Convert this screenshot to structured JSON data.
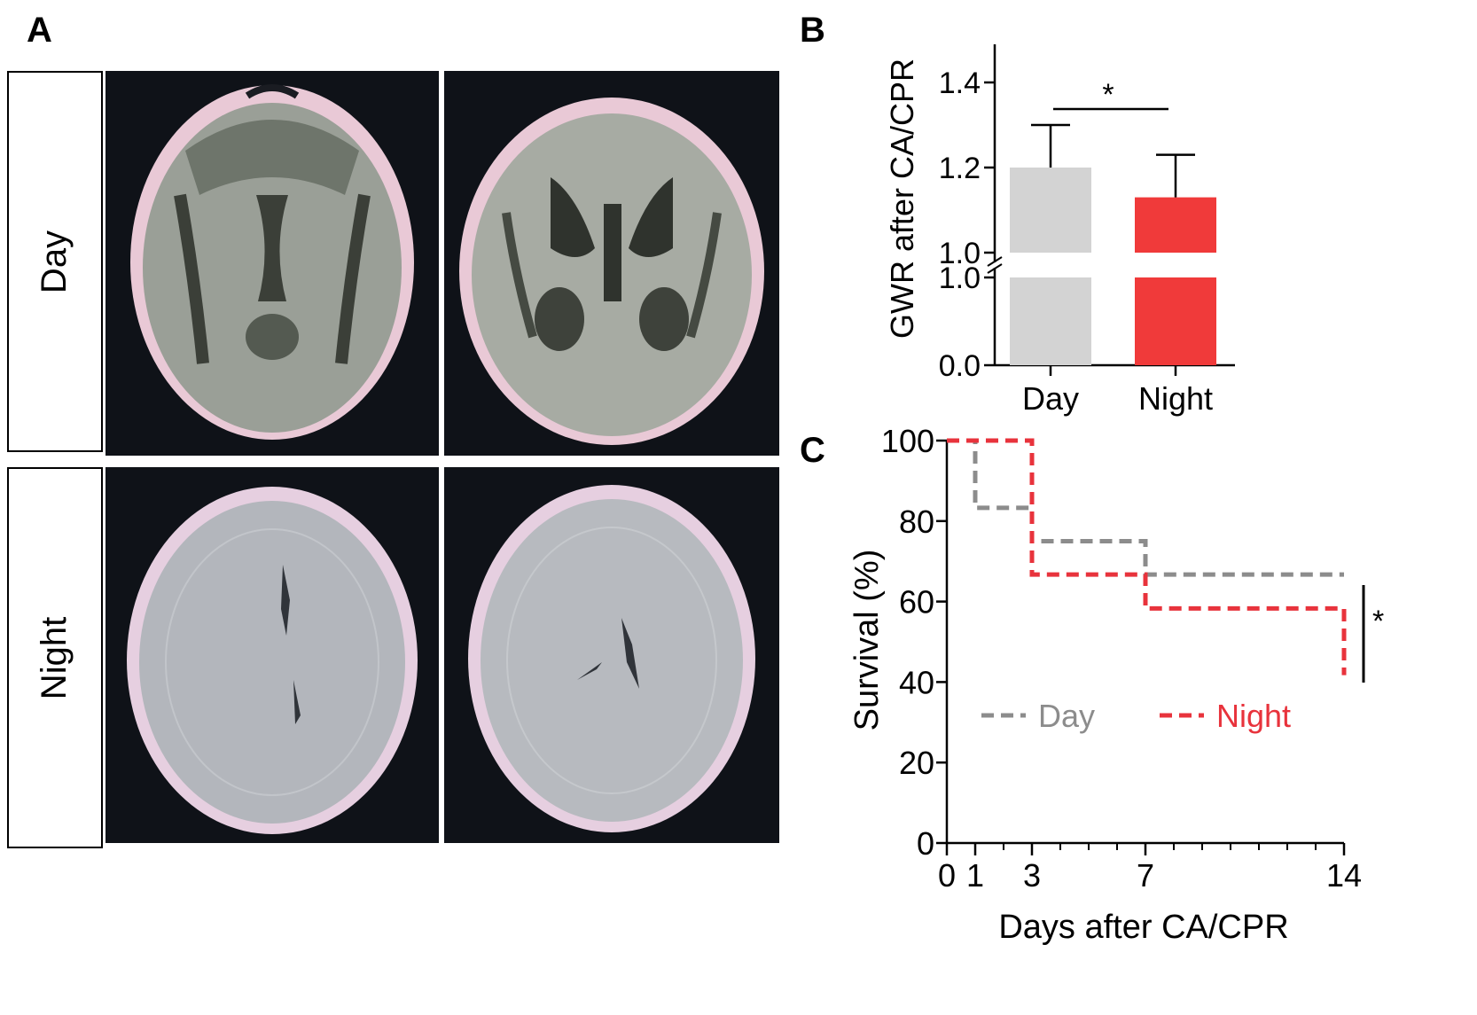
{
  "panels": {
    "a": {
      "letter": "A"
    },
    "b": {
      "letter": "B"
    },
    "c": {
      "letter": "C"
    }
  },
  "ct_rows": [
    {
      "label": "Day"
    },
    {
      "label": "Night"
    }
  ],
  "colors": {
    "day": "#d3d3d3",
    "night": "#f03a3a",
    "day_line": "#8c8c8c",
    "night_line": "#e8333c"
  },
  "chart_data": [
    {
      "type": "bar",
      "panel": "B",
      "categories": [
        "Day",
        "Night"
      ],
      "values": [
        1.2,
        1.13
      ],
      "errors": [
        0.1,
        0.1
      ],
      "ylabel": "GWR after CA/CPR",
      "y_axis_break": {
        "lower": [
          0.0,
          1.0
        ],
        "upper": [
          1.0,
          1.4
        ]
      },
      "yticks_lower": [
        "0.0",
        "1.0"
      ],
      "yticks_upper": [
        "1.0",
        "1.2",
        "1.4"
      ],
      "significance": "*"
    },
    {
      "type": "line",
      "panel": "C",
      "style": "step",
      "xlabel": "Days after CA/CPR",
      "ylabel": "Survival (%)",
      "xlim": [
        0,
        14
      ],
      "ylim": [
        0,
        100
      ],
      "xticks": [
        "0",
        "1",
        "3",
        "7",
        "14"
      ],
      "yticks": [
        "0",
        "20",
        "40",
        "60",
        "80",
        "100"
      ],
      "series": [
        {
          "name": "Day",
          "x": [
            0,
            1,
            3,
            7,
            14
          ],
          "y": [
            100,
            83.3,
            75,
            66.7,
            66.7
          ]
        },
        {
          "name": "Night",
          "x": [
            0,
            3,
            7,
            14
          ],
          "y": [
            100,
            66.7,
            58.3,
            41.7
          ]
        }
      ],
      "significance": "*",
      "legend": "inside, center-bottom"
    }
  ]
}
